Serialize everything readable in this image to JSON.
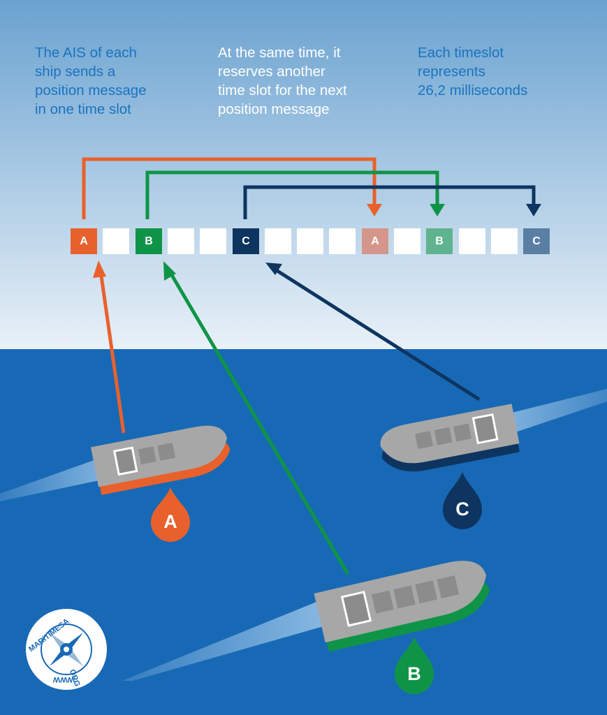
{
  "captions": {
    "left": "The AIS of each\nship sends a\nposition message\nin one time slot",
    "middle": "At the same time, it\nreserves another\ntime slot for the next\nposition message",
    "right": "Each timeslot\nrepresents\n26,2 milliseconds"
  },
  "timeslots": [
    {
      "label": "A",
      "ship": "A",
      "state": "sent"
    },
    {
      "label": "",
      "ship": null,
      "state": "free"
    },
    {
      "label": "B",
      "ship": "B",
      "state": "sent"
    },
    {
      "label": "",
      "ship": null,
      "state": "free"
    },
    {
      "label": "",
      "ship": null,
      "state": "free"
    },
    {
      "label": "C",
      "ship": "C",
      "state": "sent"
    },
    {
      "label": "",
      "ship": null,
      "state": "free"
    },
    {
      "label": "",
      "ship": null,
      "state": "free"
    },
    {
      "label": "",
      "ship": null,
      "state": "free"
    },
    {
      "label": "A",
      "ship": "A",
      "state": "reserved"
    },
    {
      "label": "",
      "ship": null,
      "state": "free"
    },
    {
      "label": "B",
      "ship": "B",
      "state": "reserved"
    },
    {
      "label": "",
      "ship": null,
      "state": "free"
    },
    {
      "label": "",
      "ship": null,
      "state": "free"
    },
    {
      "label": "C",
      "ship": "C",
      "state": "reserved"
    }
  ],
  "ships": [
    {
      "id": "A",
      "label": "A",
      "color": "#e8612c",
      "reserved_color": "#d4968a"
    },
    {
      "id": "B",
      "label": "B",
      "color": "#0f9447",
      "reserved_color": "#5fb38f"
    },
    {
      "id": "C",
      "label": "C",
      "color": "#0d3560",
      "reserved_color": "#5a7fa3"
    }
  ],
  "colors": {
    "sky_top": "#6aa2d0",
    "sky_bottom": "#e9f1f8",
    "sea": "#1869b5",
    "wake": "#7fb2de",
    "caption_blue": "#1a73c0",
    "caption_white": "#ffffff",
    "slot_free": "#ffffff",
    "hull_gray": "#a7a7a7",
    "cabin_gray": "#8c8c8c"
  },
  "logo": {
    "text_top": "MARITIMESA",
    "text_right": "ORG",
    "text_bottom": "WWW"
  }
}
